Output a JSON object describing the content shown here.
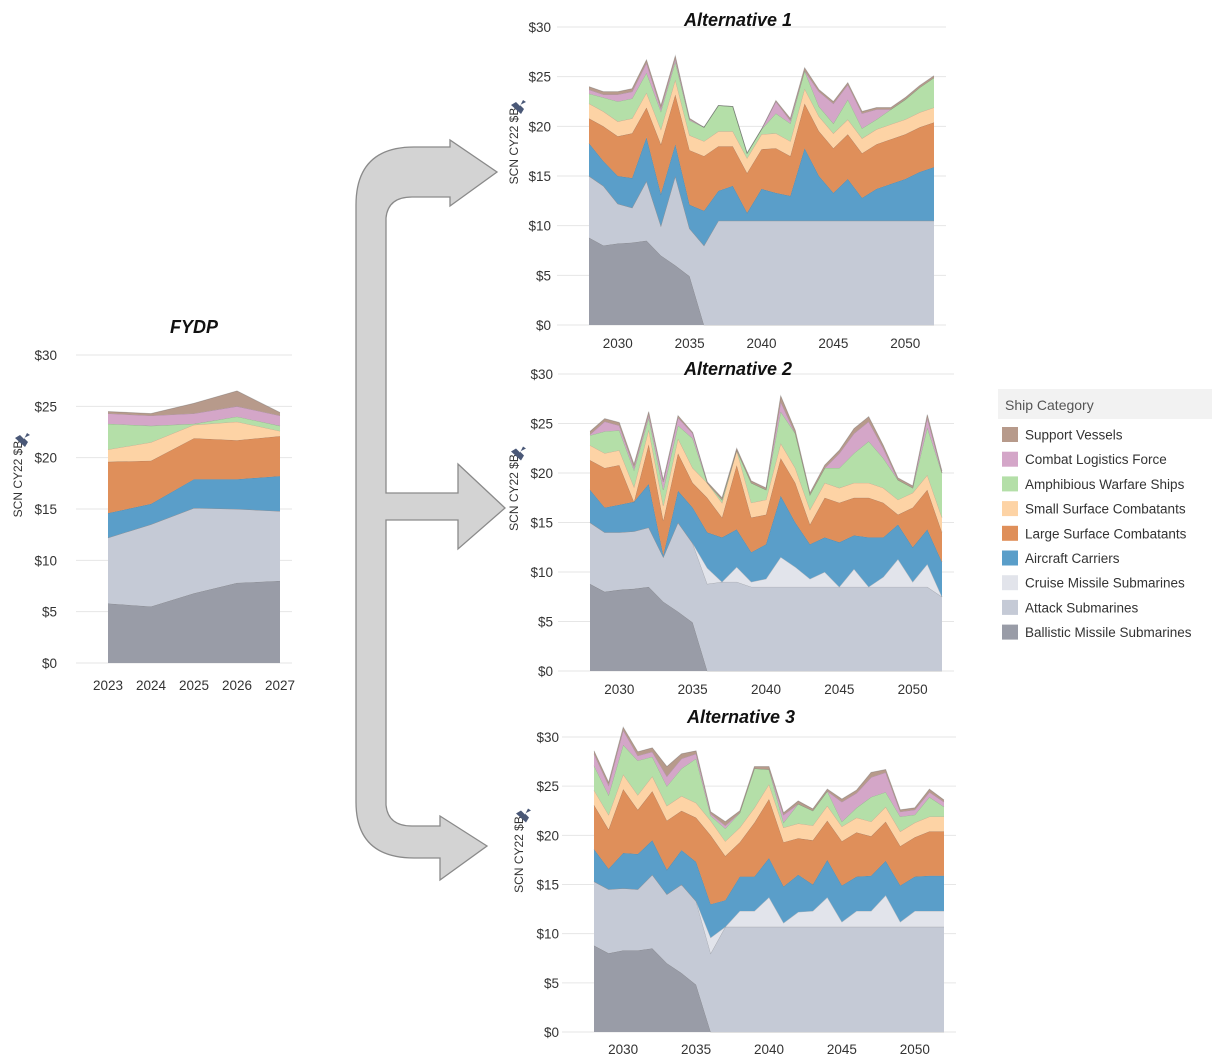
{
  "colors": {
    "Support Vessels": "#b79a8b",
    "Combat Logistics Force": "#d4a6c8",
    "Amphibious Warfare Ships": "#b4dfa8",
    "Small Surface Combatants": "#fdd3a5",
    "Large Surface Combatants": "#df8f5a",
    "Aircraft Carriers": "#5a9ec9",
    "Cruise Missile Submarines": "#e2e4eb",
    "Attack Submarines": "#c5cad6",
    "Ballistic Missile Submarines": "#999ca7"
  },
  "legend": {
    "title": "Ship Category",
    "items": [
      "Support Vessels",
      "Combat Logistics Force",
      "Amphibious Warfare Ships",
      "Small Surface Combatants",
      "Large Surface Combatants",
      "Aircraft Carriers",
      "Cruise Missile Submarines",
      "Attack Submarines",
      "Ballistic Missile Submarines"
    ]
  },
  "chart_data": [
    {
      "type": "area",
      "stacked": true,
      "title": "FYDP",
      "ylabel": "SCN CY22 $B",
      "ylim": [
        0,
        30
      ],
      "yticks": [
        "$0",
        "$5",
        "$10",
        "$15",
        "$20",
        "$25",
        "$30"
      ],
      "xticks": [
        2023,
        2024,
        2025,
        2026,
        2027
      ],
      "x": [
        2023,
        2024,
        2025,
        2026,
        2027
      ],
      "series": [
        {
          "name": "Ballistic Missile Submarines",
          "values": [
            5.8,
            5.5,
            6.8,
            7.8,
            8.0
          ]
        },
        {
          "name": "Attack Submarines",
          "values": [
            6.4,
            8.0,
            8.3,
            7.2,
            6.8
          ]
        },
        {
          "name": "Cruise Missile Submarines",
          "values": [
            0,
            0,
            0,
            0,
            0
          ]
        },
        {
          "name": "Aircraft Carriers",
          "values": [
            2.4,
            2.0,
            2.8,
            2.9,
            3.4
          ]
        },
        {
          "name": "Large Surface Combatants",
          "values": [
            5.0,
            4.2,
            4.0,
            3.8,
            3.9
          ]
        },
        {
          "name": "Small Surface Combatants",
          "values": [
            1.2,
            1.8,
            1.3,
            1.8,
            0.5
          ]
        },
        {
          "name": "Amphibious Warfare Ships",
          "values": [
            2.5,
            1.6,
            0.1,
            0.5,
            0.5
          ]
        },
        {
          "name": "Combat Logistics Force",
          "values": [
            1.0,
            1.0,
            1.0,
            1.0,
            1.0
          ]
        },
        {
          "name": "Support Vessels",
          "values": [
            0.2,
            0.2,
            1.0,
            1.5,
            0.3
          ]
        }
      ]
    },
    {
      "type": "area",
      "stacked": true,
      "title": "Alternative 1",
      "ylabel": "SCN CY22 $B",
      "ylim": [
        0,
        30
      ],
      "yticks": [
        "$0",
        "$5",
        "$10",
        "$15",
        "$20",
        "$25",
        "$30"
      ],
      "xticks": [
        2030,
        2035,
        2040,
        2045,
        2050
      ],
      "x": [
        2028,
        2029,
        2030,
        2031,
        2032,
        2033,
        2034,
        2035,
        2036,
        2037,
        2038,
        2039,
        2040,
        2041,
        2042,
        2043,
        2044,
        2045,
        2046,
        2047,
        2048,
        2049,
        2050,
        2051,
        2052
      ],
      "series": [
        {
          "name": "Ballistic Missile Submarines",
          "values": [
            8.8,
            8.0,
            8.2,
            8.3,
            8.5,
            7.0,
            6.0,
            4.9,
            0,
            0,
            0,
            0,
            0,
            0,
            0,
            0,
            0,
            0,
            0,
            0,
            0,
            0,
            0,
            0,
            0
          ]
        },
        {
          "name": "Attack Submarines",
          "values": [
            6.2,
            6.0,
            4.0,
            3.5,
            6.0,
            3.0,
            9.0,
            4.8,
            8.0,
            10.5,
            10.5,
            10.5,
            10.5,
            10.5,
            10.5,
            10.5,
            10.5,
            10.5,
            10.5,
            10.5,
            10.5,
            10.5,
            10.5,
            10.5,
            10.5
          ]
        },
        {
          "name": "Cruise Missile Submarines",
          "values": [
            0,
            0,
            0,
            0,
            0,
            0,
            0,
            0,
            0,
            0,
            0,
            0,
            0,
            0,
            0,
            0,
            0,
            0,
            0,
            0,
            0,
            0,
            0,
            0,
            0
          ]
        },
        {
          "name": "Aircraft Carriers",
          "values": [
            3.3,
            2.5,
            2.8,
            3.0,
            4.4,
            3.2,
            3.2,
            2.4,
            3.5,
            3.0,
            3.5,
            0.8,
            3.2,
            2.8,
            2.5,
            7.3,
            4.5,
            2.8,
            4.2,
            2.3,
            3.2,
            3.7,
            4.2,
            4.9,
            5.4
          ]
        },
        {
          "name": "Large Surface Combatants",
          "values": [
            2.5,
            3.5,
            4.0,
            4.5,
            3.0,
            5.0,
            5.0,
            5.5,
            5.5,
            4.5,
            4.0,
            4.0,
            4.0,
            4.5,
            4.0,
            4.5,
            4.5,
            4.5,
            4.5,
            4.5,
            4.5,
            4.5,
            4.5,
            4.5,
            4.5
          ]
        },
        {
          "name": "Small Surface Combatants",
          "values": [
            1.5,
            1.5,
            1.5,
            1.5,
            1.5,
            1.5,
            1.5,
            1.5,
            1.5,
            1.5,
            1.5,
            1.5,
            1.5,
            1.5,
            1.5,
            1.5,
            1.5,
            1.5,
            1.5,
            1.5,
            1.5,
            1.5,
            1.5,
            1.5,
            1.5
          ]
        },
        {
          "name": "Amphibious Warfare Ships",
          "values": [
            1.0,
            1.4,
            2.0,
            2.0,
            2.0,
            1.8,
            1.8,
            1.5,
            1.4,
            2.6,
            2.5,
            0.5,
            0.5,
            2.0,
            1.8,
            1.8,
            1.0,
            1.0,
            2.0,
            1.0,
            1.0,
            1.5,
            2.0,
            2.5,
            3.0
          ]
        },
        {
          "name": "Combat Logistics Force",
          "values": [
            0.4,
            0.3,
            0.7,
            0.7,
            1.0,
            0.3,
            0.3,
            0.1,
            0,
            0,
            0,
            0,
            0,
            1.2,
            0.3,
            0,
            1.5,
            2.0,
            1.5,
            1.5,
            1.0,
            0,
            0,
            0,
            0
          ]
        },
        {
          "name": "Support Vessels",
          "values": [
            0.3,
            0.3,
            0.3,
            0.3,
            0.3,
            0.3,
            0.3,
            0.1,
            0,
            0,
            0,
            0,
            0,
            0.1,
            0.2,
            0.3,
            0.2,
            0.2,
            0.2,
            0.2,
            0.2,
            0.2,
            0.2,
            0.2,
            0.2
          ]
        }
      ]
    },
    {
      "type": "area",
      "stacked": true,
      "title": "Alternative 2",
      "ylabel": "SCN CY22 $B",
      "ylim": [
        0,
        30
      ],
      "yticks": [
        "$0",
        "$5",
        "$10",
        "$15",
        "$20",
        "$25",
        "$30"
      ],
      "xticks": [
        2030,
        2035,
        2040,
        2045,
        2050
      ],
      "x": [
        2028,
        2029,
        2030,
        2031,
        2032,
        2033,
        2034,
        2035,
        2036,
        2037,
        2038,
        2039,
        2040,
        2041,
        2042,
        2043,
        2044,
        2045,
        2046,
        2047,
        2048,
        2049,
        2050,
        2051,
        2052
      ],
      "series": [
        {
          "name": "Ballistic Missile Submarines",
          "values": [
            8.8,
            8.0,
            8.2,
            8.3,
            8.5,
            7.0,
            6.0,
            4.9,
            0,
            0,
            0,
            0,
            0,
            0,
            0,
            0,
            0,
            0,
            0,
            0,
            0,
            0,
            0,
            0,
            0
          ]
        },
        {
          "name": "Attack Submarines",
          "values": [
            6.2,
            6.0,
            5.8,
            5.8,
            6.0,
            4.5,
            9.0,
            8.0,
            8.8,
            9.0,
            9.0,
            8.5,
            8.5,
            8.5,
            8.5,
            8.5,
            8.5,
            8.5,
            8.5,
            8.5,
            8.5,
            8.5,
            8.5,
            8.5,
            7.5
          ]
        },
        {
          "name": "Cruise Missile Submarines",
          "values": [
            0,
            0,
            0,
            0,
            0,
            0,
            0,
            0,
            1.6,
            0,
            1.5,
            0.5,
            0.8,
            3.0,
            2.0,
            0.8,
            1.5,
            0,
            1.8,
            0,
            1.0,
            2.8,
            0.5,
            2.3,
            0
          ]
        },
        {
          "name": "Aircraft Carriers",
          "values": [
            3.3,
            2.5,
            2.8,
            3.0,
            4.4,
            0.2,
            3.2,
            3.6,
            3.6,
            4.5,
            3.8,
            3.0,
            3.5,
            6.2,
            4.5,
            3.5,
            3.5,
            4.5,
            3.4,
            5.0,
            4.0,
            3.5,
            3.5,
            3.5,
            3.5
          ]
        },
        {
          "name": "Large Surface Combatants",
          "values": [
            3.0,
            4.0,
            4.0,
            0.0,
            4.0,
            3.5,
            3.8,
            2.5,
            3.5,
            2.0,
            6.5,
            3.5,
            3.0,
            3.8,
            4.0,
            2.0,
            4.0,
            4.0,
            3.8,
            4.0,
            3.5,
            1.0,
            4.0,
            4.0,
            3.0
          ]
        },
        {
          "name": "Small Surface Combatants",
          "values": [
            1.5,
            1.5,
            1.5,
            1.5,
            1.5,
            1.5,
            1.5,
            1.5,
            1.5,
            1.5,
            1.5,
            1.5,
            1.5,
            1.5,
            1.5,
            1.5,
            1.5,
            1.5,
            1.5,
            1.5,
            1.5,
            1.5,
            1.5,
            1.5,
            1.5
          ]
        },
        {
          "name": "Amphibious Warfare Ships",
          "values": [
            1.0,
            2.2,
            2.0,
            1.7,
            1.2,
            1.6,
            1.3,
            3.0,
            0,
            0.3,
            0,
            2.0,
            1.0,
            3.2,
            3.5,
            1.5,
            1.5,
            2.0,
            3.0,
            4.2,
            3.0,
            2.0,
            0.5,
            4.8,
            4.5
          ]
        },
        {
          "name": "Combat Logistics Force",
          "values": [
            0.1,
            1.0,
            0.5,
            0.3,
            0.3,
            0.8,
            0.8,
            0.5,
            0,
            0,
            0,
            0,
            0,
            1.0,
            0,
            0,
            0,
            1.5,
            2.0,
            2.0,
            1.0,
            0,
            0,
            1.0,
            0
          ]
        },
        {
          "name": "Support Vessels",
          "values": [
            0.3,
            0.3,
            0.3,
            0.3,
            0.3,
            0.2,
            0.2,
            0.1,
            0.1,
            0.2,
            0.2,
            0.2,
            0.2,
            0.6,
            0.3,
            0.2,
            0.3,
            0.3,
            0.5,
            0.5,
            0.3,
            0.2,
            0.2,
            0.3,
            0.2
          ]
        }
      ]
    },
    {
      "type": "area",
      "stacked": true,
      "title": "Alternative 3",
      "ylabel": "SCN CY22 $B",
      "ylim": [
        0,
        30
      ],
      "yticks": [
        "$0",
        "$5",
        "$10",
        "$15",
        "$20",
        "$25",
        "$30"
      ],
      "xticks": [
        2030,
        2035,
        2040,
        2045,
        2050
      ],
      "x": [
        2028,
        2029,
        2030,
        2031,
        2032,
        2033,
        2034,
        2035,
        2036,
        2037,
        2038,
        2039,
        2040,
        2041,
        2042,
        2043,
        2044,
        2045,
        2046,
        2047,
        2048,
        2049,
        2050,
        2051,
        2052
      ],
      "series": [
        {
          "name": "Ballistic Missile Submarines",
          "values": [
            8.8,
            8.0,
            8.3,
            8.3,
            8.5,
            7.0,
            6.0,
            4.8,
            0,
            0,
            0,
            0,
            0,
            0,
            0,
            0,
            0,
            0,
            0,
            0,
            0,
            0,
            0,
            0,
            0
          ]
        },
        {
          "name": "Attack Submarines",
          "values": [
            6.5,
            6.5,
            6.3,
            6.2,
            7.5,
            7.0,
            9.0,
            8.5,
            8.0,
            10.7,
            10.7,
            10.7,
            10.7,
            10.7,
            10.7,
            10.7,
            10.7,
            10.7,
            10.7,
            10.7,
            10.7,
            10.7,
            10.7,
            10.7,
            10.7
          ]
        },
        {
          "name": "Cruise Missile Submarines",
          "values": [
            0,
            0,
            0,
            0,
            0,
            0,
            0,
            0,
            1.6,
            0,
            1.6,
            1.6,
            3.0,
            0.4,
            1.5,
            1.6,
            3.0,
            0.5,
            1.6,
            1.6,
            3.2,
            0.5,
            1.6,
            1.6,
            1.6
          ]
        },
        {
          "name": "Aircraft Carriers",
          "values": [
            3.3,
            2.1,
            3.6,
            3.6,
            3.5,
            2.5,
            3.5,
            4.0,
            3.4,
            2.7,
            3.5,
            3.5,
            4.0,
            3.7,
            3.8,
            2.7,
            3.8,
            3.7,
            3.5,
            3.6,
            3.5,
            3.7,
            3.5,
            3.6,
            3.6
          ]
        },
        {
          "name": "Large Surface Combatants",
          "values": [
            4.5,
            4.0,
            6.5,
            4.5,
            5.0,
            5.0,
            4.0,
            4.5,
            7.0,
            4.5,
            3.5,
            5.5,
            6.0,
            4.5,
            3.7,
            4.5,
            4.0,
            4.5,
            4.5,
            4.0,
            4.0,
            4.0,
            4.0,
            4.5,
            4.5
          ]
        },
        {
          "name": "Small Surface Combatants",
          "values": [
            1.5,
            1.5,
            1.5,
            1.5,
            1.5,
            1.5,
            1.5,
            1.5,
            1.5,
            1.5,
            1.5,
            1.5,
            1.5,
            1.5,
            1.5,
            1.5,
            1.5,
            1.5,
            1.5,
            1.5,
            1.5,
            1.5,
            1.5,
            1.5,
            1.5
          ]
        },
        {
          "name": "Amphibious Warfare Ships",
          "values": [
            2.5,
            2.0,
            3.0,
            3.5,
            2.0,
            2.0,
            2.8,
            4.5,
            0.5,
            1.3,
            1.5,
            4.0,
            1.5,
            0.5,
            2.0,
            1.5,
            1.5,
            0.5,
            1.0,
            2.5,
            1.5,
            1.5,
            0.8,
            2.0,
            1.0
          ]
        },
        {
          "name": "Combat Logistics Force",
          "values": [
            1.2,
            1.0,
            1.5,
            0.5,
            0.5,
            1.0,
            1.0,
            0.5,
            0.2,
            0.3,
            0,
            0,
            0,
            0.8,
            0,
            0,
            0,
            2.0,
            1.5,
            2.0,
            2.0,
            0.5,
            0.5,
            0.5,
            0.5
          ]
        },
        {
          "name": "Support Vessels",
          "values": [
            0.3,
            0.3,
            0.3,
            0.4,
            0.4,
            1.0,
            0.5,
            0.3,
            0.2,
            0.4,
            0.2,
            0.2,
            0.3,
            0.2,
            0.3,
            0.2,
            0.2,
            0.3,
            0.3,
            0.5,
            0.3,
            0.2,
            0.2,
            0.3,
            0.2
          ]
        }
      ]
    }
  ]
}
